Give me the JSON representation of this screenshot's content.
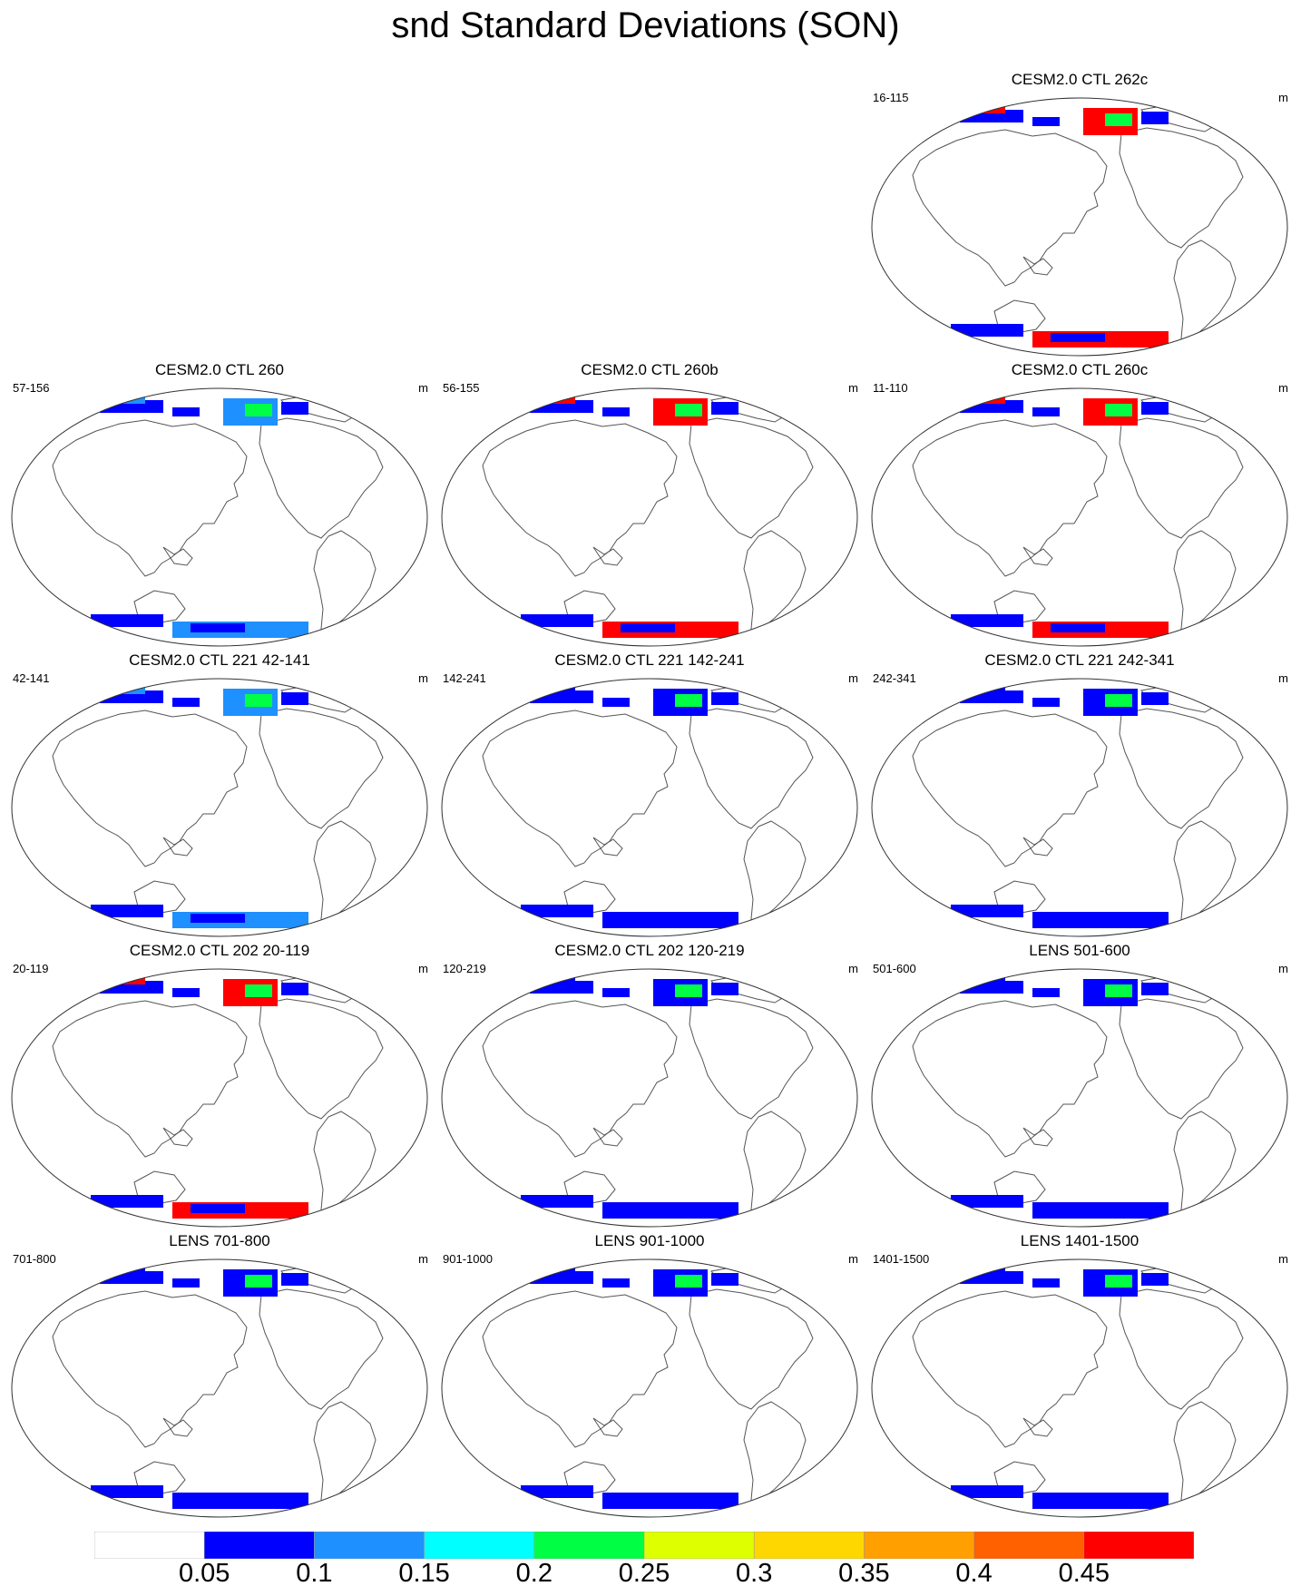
{
  "title": "snd Standard Deviations (SON)",
  "unit": "m",
  "panels": [
    {
      "title": "CESM2.0 CTL 262c",
      "years": "16-115",
      "row": 0,
      "col": 2,
      "snow_level": 0.45
    },
    {
      "title": "CESM2.0 CTL 260",
      "years": "57-156",
      "row": 1,
      "col": 0,
      "snow_level": 0.1
    },
    {
      "title": "CESM2.0 CTL 260b",
      "years": "56-155",
      "row": 1,
      "col": 1,
      "snow_level": 0.45
    },
    {
      "title": "CESM2.0 CTL 260c",
      "years": "11-110",
      "row": 1,
      "col": 2,
      "snow_level": 0.45
    },
    {
      "title": "CESM2.0 CTL 221 42-141",
      "years": "42-141",
      "row": 2,
      "col": 0,
      "snow_level": 0.1
    },
    {
      "title": "CESM2.0 CTL 221 142-241",
      "years": "142-241",
      "row": 2,
      "col": 1,
      "snow_level": 0.05
    },
    {
      "title": "CESM2.0 CTL 221 242-341",
      "years": "242-341",
      "row": 2,
      "col": 2,
      "snow_level": 0.05
    },
    {
      "title": "CESM2.0 CTL 202 20-119",
      "years": "20-119",
      "row": 3,
      "col": 0,
      "snow_level": 0.45
    },
    {
      "title": "CESM2.0 CTL 202 120-219",
      "years": "120-219",
      "row": 3,
      "col": 1,
      "snow_level": 0.05
    },
    {
      "title": "LENS 501-600",
      "years": "501-600",
      "row": 3,
      "col": 2,
      "snow_level": 0.05
    },
    {
      "title": "LENS 701-800",
      "years": "701-800",
      "row": 4,
      "col": 0,
      "snow_level": 0.05
    },
    {
      "title": "LENS 901-1000",
      "years": "901-1000",
      "row": 4,
      "col": 1,
      "snow_level": 0.05
    },
    {
      "title": "LENS 1401-1500",
      "years": "1401-1500",
      "row": 4,
      "col": 2,
      "snow_level": 0.05
    }
  ],
  "colorbar": {
    "labels": [
      "0.05",
      "0.1",
      "0.15",
      "0.2",
      "0.25",
      "0.3",
      "0.35",
      "0.4",
      "0.45"
    ],
    "colors": [
      "#ffffff",
      "#0000ff",
      "#1e90ff",
      "#00ffff",
      "#00ff44",
      "#ddff00",
      "#ffd700",
      "#ffa000",
      "#ff6000",
      "#ff0000"
    ]
  }
}
